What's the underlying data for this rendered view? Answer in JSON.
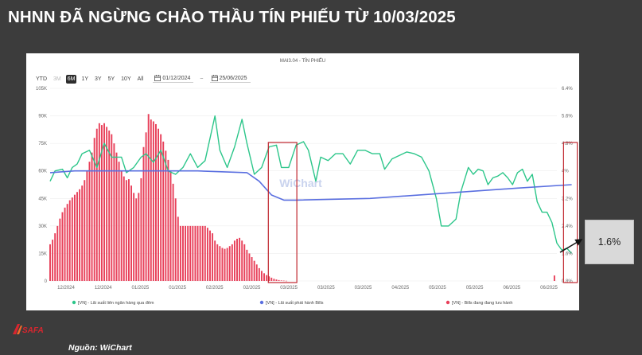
{
  "slide": {
    "title": "NHNN ĐÃ NGỪNG CHÀO THẦU TÍN PHIẾU TỪ 10/03/2025",
    "callout_value": "1.6%",
    "source": "Nguồn: WiChart",
    "logo_text": "SAFA"
  },
  "toolbar": {
    "ranges": [
      {
        "label": "YTD",
        "state": "normal"
      },
      {
        "label": "3M",
        "state": "disabled"
      },
      {
        "label": "6M",
        "state": "active"
      },
      {
        "label": "1Y",
        "state": "normal"
      },
      {
        "label": "3Y",
        "state": "normal"
      },
      {
        "label": "5Y",
        "state": "normal"
      },
      {
        "label": "10Y",
        "state": "normal"
      },
      {
        "label": "All",
        "state": "normal"
      }
    ],
    "date_from": "01/12/2024",
    "date_to": "25/06/2025",
    "separator": "~"
  },
  "chart_data": {
    "type": "bar",
    "title": "MAI3.04 - TÍN PHIẾU",
    "watermark": "WiChart",
    "colors": {
      "bills": "#e8405a",
      "interbank": "#2cc68a",
      "issuance": "#5a6fe0",
      "highlight": "#c0262e"
    },
    "x_tick_labels": [
      "12/2024",
      "12/2024",
      "01/2025",
      "01/2025",
      "02/2025",
      "02/2025",
      "03/2025",
      "03/2025",
      "03/2025",
      "04/2025",
      "05/2025",
      "05/2025",
      "06/2025",
      "06/2025"
    ],
    "left_axis": {
      "ticks": [
        "0",
        "15K",
        "30K",
        "45K",
        "60K",
        "75K",
        "90K",
        "105K"
      ],
      "min": 0,
      "max": 105000
    },
    "right_axis": {
      "ticks": [
        "0.8%",
        "1.6%",
        "2.4%",
        "3.2%",
        "4%",
        "4.8%",
        "5.6%",
        "6.4%"
      ],
      "min": 0.8,
      "max": 6.4
    },
    "x_range_days": [
      0,
      206
    ],
    "legend": [
      {
        "label": "[VN] - Lãi suất liên ngân hàng qua đêm"
      },
      {
        "label": "[VN] - Lãi suất phát hành Bills"
      },
      {
        "label": "[VN] - Bills đang đang lưu hành"
      }
    ],
    "series": [
      {
        "name": "[VN] - Bills đang đang lưu hành",
        "axis": "left",
        "type": "bar",
        "points": [
          [
            0,
            20000
          ],
          [
            1,
            22500
          ],
          [
            2,
            26000
          ],
          [
            3,
            30000
          ],
          [
            4,
            34000
          ],
          [
            5,
            37500
          ],
          [
            6,
            40000
          ],
          [
            7,
            42000
          ],
          [
            8,
            44000
          ],
          [
            9,
            45500
          ],
          [
            10,
            47000
          ],
          [
            11,
            48500
          ],
          [
            12,
            50000
          ],
          [
            13,
            52000
          ],
          [
            14,
            55000
          ],
          [
            15,
            60000
          ],
          [
            16,
            65000
          ],
          [
            17,
            70000
          ],
          [
            18,
            78000
          ],
          [
            19,
            83000
          ],
          [
            20,
            86000
          ],
          [
            21,
            85000
          ],
          [
            22,
            86000
          ],
          [
            23,
            84000
          ],
          [
            24,
            82000
          ],
          [
            25,
            80000
          ],
          [
            26,
            75000
          ],
          [
            27,
            70000
          ],
          [
            28,
            65000
          ],
          [
            29,
            60000
          ],
          [
            30,
            57000
          ],
          [
            31,
            55000
          ],
          [
            32,
            55500
          ],
          [
            33,
            52000
          ],
          [
            34,
            48000
          ],
          [
            35,
            45000
          ],
          [
            36,
            48000
          ],
          [
            37,
            56000
          ],
          [
            38,
            73000
          ],
          [
            39,
            81000
          ],
          [
            40,
            91000
          ],
          [
            41,
            88000
          ],
          [
            42,
            87000
          ],
          [
            43,
            85500
          ],
          [
            44,
            83000
          ],
          [
            45,
            80000
          ],
          [
            46,
            76000
          ],
          [
            47,
            71000
          ],
          [
            48,
            66000
          ],
          [
            49,
            60000
          ],
          [
            50,
            53000
          ],
          [
            51,
            45000
          ],
          [
            52,
            35000
          ],
          [
            53,
            30000
          ],
          [
            54,
            30000
          ],
          [
            55,
            30000
          ],
          [
            56,
            30000
          ],
          [
            57,
            30000
          ],
          [
            58,
            30000
          ],
          [
            59,
            30000
          ],
          [
            60,
            30000
          ],
          [
            61,
            30000
          ],
          [
            62,
            30000
          ],
          [
            63,
            30000
          ],
          [
            64,
            29000
          ],
          [
            65,
            27500
          ],
          [
            66,
            26000
          ],
          [
            67,
            22000
          ],
          [
            68,
            20000
          ],
          [
            69,
            19000
          ],
          [
            70,
            18000
          ],
          [
            71,
            17500
          ],
          [
            72,
            18000
          ],
          [
            73,
            19000
          ],
          [
            74,
            20000
          ],
          [
            75,
            22000
          ],
          [
            76,
            23000
          ],
          [
            77,
            23500
          ],
          [
            78,
            22000
          ],
          [
            79,
            20000
          ],
          [
            80,
            17000
          ],
          [
            81,
            15000
          ],
          [
            82,
            13000
          ],
          [
            83,
            11000
          ],
          [
            84,
            9000
          ],
          [
            85,
            7000
          ],
          [
            86,
            5500
          ],
          [
            87,
            4200
          ],
          [
            88,
            3200
          ],
          [
            89,
            2500
          ],
          [
            90,
            1800
          ],
          [
            91,
            1200
          ],
          [
            92,
            800
          ],
          [
            93,
            500
          ],
          [
            94,
            300
          ],
          [
            95,
            200
          ],
          [
            96,
            100
          ],
          [
            205,
            3000
          ]
        ]
      },
      {
        "name": "[VN] - Lãi suất liên ngân hàng qua đêm",
        "axis": "right",
        "type": "line",
        "points": [
          [
            0,
            3.7
          ],
          [
            2,
            4.0
          ],
          [
            5,
            4.05
          ],
          [
            7,
            3.8
          ],
          [
            9,
            4.1
          ],
          [
            11,
            4.2
          ],
          [
            13,
            4.5
          ],
          [
            16,
            4.6
          ],
          [
            19,
            4.1
          ],
          [
            22,
            4.8
          ],
          [
            25,
            4.4
          ],
          [
            29,
            4.4
          ],
          [
            31,
            3.95
          ],
          [
            34,
            4.1
          ],
          [
            37,
            4.4
          ],
          [
            39,
            4.5
          ],
          [
            42,
            4.25
          ],
          [
            45,
            4.6
          ],
          [
            48,
            4.0
          ],
          [
            51,
            3.9
          ],
          [
            54,
            4.1
          ],
          [
            57,
            4.5
          ],
          [
            60,
            4.1
          ],
          [
            63,
            4.3
          ],
          [
            67,
            5.6
          ],
          [
            69,
            4.6
          ],
          [
            72,
            4.1
          ],
          [
            75,
            4.7
          ],
          [
            78,
            5.5
          ],
          [
            80,
            4.8
          ],
          [
            83,
            3.9
          ],
          [
            86,
            4.1
          ],
          [
            89,
            4.7
          ],
          [
            92,
            4.75
          ],
          [
            94,
            4.1
          ],
          [
            97,
            4.1
          ],
          [
            100,
            4.75
          ],
          [
            103,
            4.85
          ],
          [
            105,
            4.6
          ],
          [
            108,
            3.7
          ],
          [
            110,
            4.4
          ],
          [
            113,
            4.3
          ],
          [
            116,
            4.5
          ],
          [
            119,
            4.5
          ],
          [
            122,
            4.2
          ],
          [
            125,
            4.6
          ],
          [
            128,
            4.6
          ],
          [
            131,
            4.5
          ],
          [
            134,
            4.5
          ],
          [
            136,
            4.05
          ],
          [
            139,
            4.35
          ],
          [
            142,
            4.45
          ],
          [
            145,
            4.55
          ],
          [
            148,
            4.5
          ],
          [
            151,
            4.4
          ],
          [
            154,
            4.0
          ],
          [
            157,
            3.2
          ],
          [
            159,
            2.4
          ],
          [
            162,
            2.4
          ],
          [
            165,
            2.6
          ],
          [
            167,
            3.4
          ],
          [
            170,
            4.1
          ],
          [
            172,
            3.9
          ],
          [
            174,
            4.05
          ],
          [
            176,
            4.0
          ],
          [
            178,
            3.6
          ],
          [
            180,
            3.8
          ],
          [
            182,
            3.85
          ],
          [
            184,
            3.95
          ],
          [
            186,
            3.8
          ],
          [
            188,
            3.6
          ],
          [
            190,
            3.95
          ],
          [
            192,
            4.05
          ],
          [
            194,
            3.7
          ],
          [
            196,
            3.9
          ],
          [
            198,
            3.1
          ],
          [
            200,
            2.8
          ],
          [
            202,
            2.8
          ],
          [
            204,
            2.5
          ],
          [
            206,
            1.9
          ],
          [
            208,
            1.7
          ],
          [
            210,
            1.75
          ],
          [
            212,
            1.6
          ]
        ]
      },
      {
        "name": "[VN] - Lãi suất phát hành Bills",
        "axis": "right",
        "type": "line",
        "points": [
          [
            0,
            3.95
          ],
          [
            10,
            4.0
          ],
          [
            30,
            4.0
          ],
          [
            60,
            4.0
          ],
          [
            80,
            3.95
          ],
          [
            85,
            3.7
          ],
          [
            90,
            3.3
          ],
          [
            95,
            3.15
          ],
          [
            100,
            3.15
          ],
          [
            130,
            3.2
          ],
          [
            160,
            3.35
          ],
          [
            190,
            3.5
          ],
          [
            212,
            3.6
          ]
        ]
      }
    ],
    "highlight_boxes": [
      [
        90,
        99
      ],
      [
        210,
        213
      ]
    ]
  }
}
